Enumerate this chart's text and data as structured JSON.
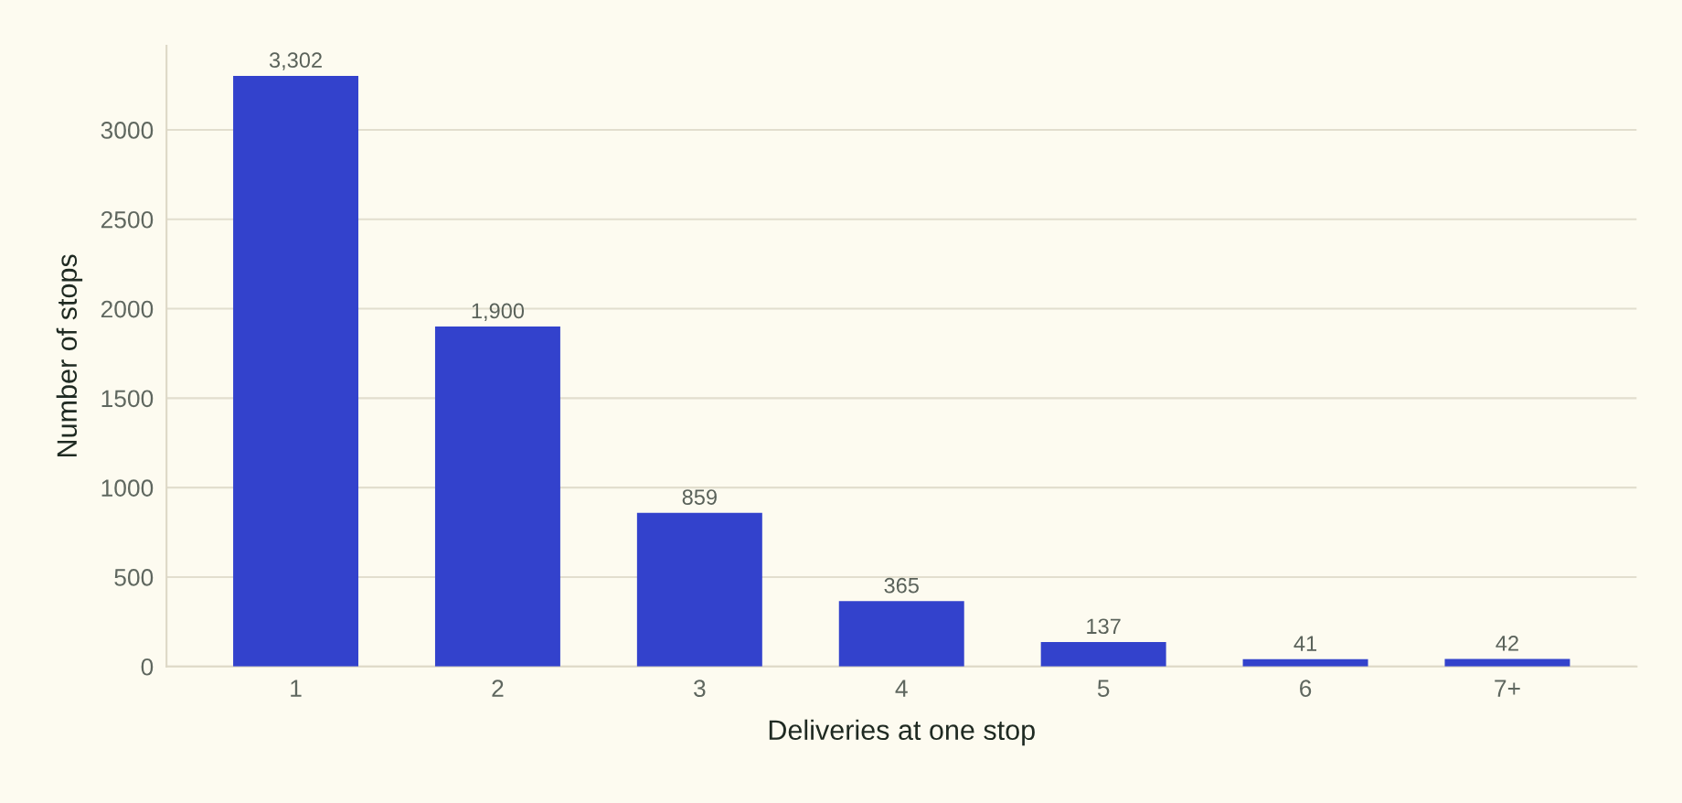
{
  "chart_data": {
    "type": "bar",
    "xlabel": "Deliveries at one stop",
    "ylabel": "Number of stops",
    "categories": [
      "1",
      "2",
      "3",
      "4",
      "5",
      "6",
      "7+"
    ],
    "values": [
      3302,
      1900,
      859,
      365,
      137,
      41,
      42
    ],
    "value_labels": [
      "3,302",
      "1,900",
      "859",
      "365",
      "137",
      "41",
      "42"
    ],
    "color": "#3342cc",
    "ylim": [
      0,
      3470
    ],
    "yticks": [
      0,
      500,
      1000,
      1500,
      2000,
      2500,
      3000
    ],
    "grid": "y"
  }
}
